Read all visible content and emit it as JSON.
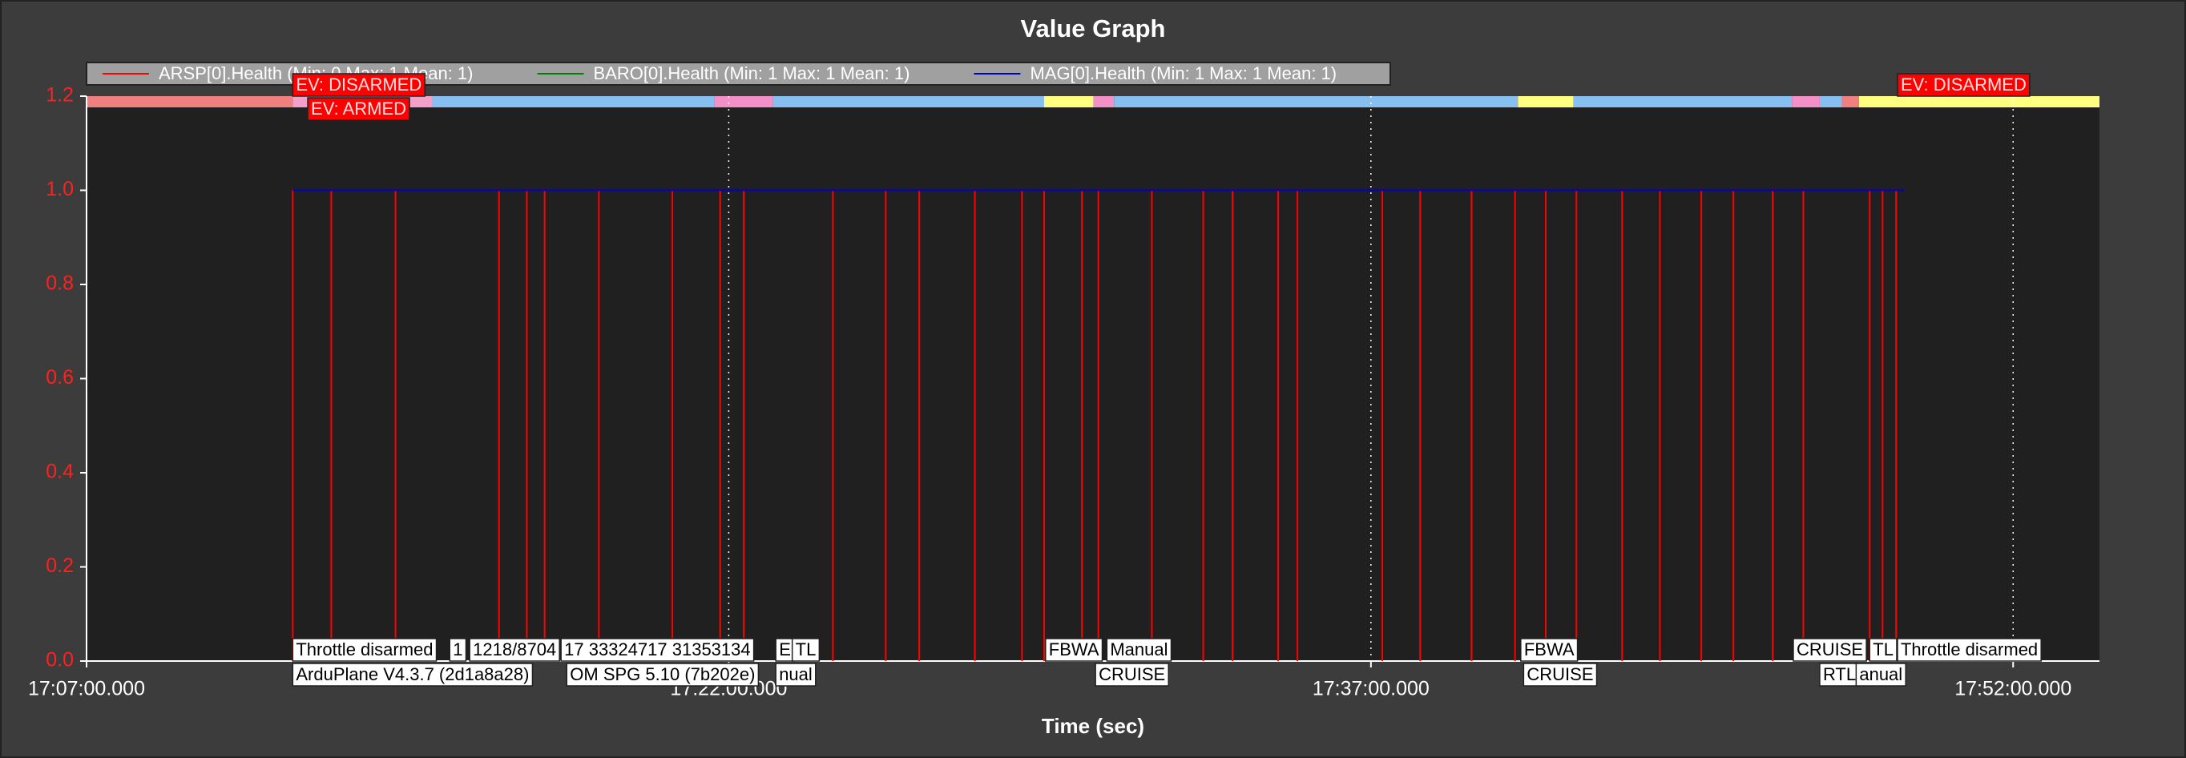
{
  "chart_data": {
    "type": "line",
    "title": "Value Graph",
    "xlabel": "Time (sec)",
    "xlim": [
      61620,
      64441
    ],
    "xticks": [
      {
        "value": 61620,
        "label": "17:07:00.000"
      },
      {
        "value": 62520,
        "label": "17:22:00.000"
      },
      {
        "value": 63420,
        "label": "17:37:00.000"
      },
      {
        "value": 64320,
        "label": "17:52:00.000"
      }
    ],
    "ylim": [
      0,
      1.2
    ],
    "yticks": [
      {
        "value": 0,
        "label": "0.0"
      },
      0.2,
      0.4,
      0.6,
      0.8,
      {
        "value": 1,
        "label": "1.0"
      },
      1.2
    ],
    "grid": true,
    "series": [
      {
        "name": "ARSP[0].Health  (Min: 0 Max: 1 Mean: 1)",
        "color": "#ff0000",
        "x": [
          61909,
          61909,
          61909,
          61963,
          61963,
          61963,
          62053,
          62053,
          62053,
          62198,
          62198,
          62198,
          62237,
          62237,
          62237,
          62262,
          62262,
          62262,
          62338,
          62338,
          62338,
          62441,
          62441,
          62441,
          62508,
          62508,
          62508,
          62541,
          62541,
          62541,
          62666,
          62666,
          62666,
          62740,
          62740,
          62740,
          62787,
          62787,
          62787,
          62865,
          62865,
          62865,
          62931,
          62931,
          62931,
          62962,
          62962,
          62962,
          63015,
          63015,
          63015,
          63038,
          63038,
          63038,
          63113,
          63113,
          63113,
          63185,
          63185,
          63185,
          63226,
          63226,
          63226,
          63290,
          63290,
          63290,
          63317,
          63317,
          63317,
          63436,
          63436,
          63436,
          63489,
          63489,
          63489,
          63561,
          63561,
          63561,
          63622,
          63622,
          63622,
          63665,
          63665,
          63665,
          63708,
          63708,
          63708,
          63772,
          63772,
          63772,
          63825,
          63825,
          63825,
          63883,
          63883,
          63883,
          63928,
          63928,
          63928,
          63983,
          63983,
          63983,
          64026,
          64026,
          64026,
          64119,
          64119,
          64119,
          64137,
          64137,
          64137,
          64156,
          64156,
          64156,
          64168
        ],
        "values": [
          1,
          0,
          1,
          1,
          0,
          1,
          1,
          0,
          1,
          1,
          0,
          1,
          1,
          0,
          1,
          1,
          0,
          1,
          1,
          0,
          1,
          1,
          0,
          1,
          1,
          0,
          1,
          1,
          0,
          1,
          1,
          0,
          1,
          1,
          0,
          1,
          1,
          0,
          1,
          1,
          0,
          1,
          1,
          0,
          1,
          1,
          0,
          1,
          1,
          0,
          1,
          1,
          0,
          1,
          1,
          0,
          1,
          1,
          0,
          1,
          1,
          0,
          1,
          1,
          0,
          1,
          1,
          0,
          1,
          1,
          0,
          1,
          1,
          0,
          1,
          1,
          0,
          1,
          1,
          0,
          1,
          1,
          0,
          1,
          1,
          0,
          1,
          1,
          0,
          1,
          1,
          0,
          1,
          1,
          0,
          1,
          1,
          0,
          1,
          1,
          0,
          1,
          1,
          0,
          1,
          1,
          0,
          1,
          1,
          0,
          1,
          1,
          0,
          1,
          1
        ]
      },
      {
        "name": "BARO[0].Health  (Min: 1 Max: 1 Mean: 1)",
        "color": "#008000",
        "x": [
          61909,
          64168
        ],
        "values": [
          1,
          1
        ]
      },
      {
        "name": "MAG[0].Health  (Min: 1 Max: 1 Mean: 1)",
        "color": "#0000cd",
        "x": [
          61909,
          64168
        ],
        "values": [
          1,
          1
        ]
      }
    ],
    "mode_bands": [
      {
        "start": 61620,
        "end": 61909,
        "color": "#f08080"
      },
      {
        "start": 61909,
        "end": 62104,
        "color": "#f4a0c8"
      },
      {
        "start": 62104,
        "end": 62500,
        "color": "#87c0f0"
      },
      {
        "start": 62500,
        "end": 62582,
        "color": "#f490c8"
      },
      {
        "start": 62582,
        "end": 62962,
        "color": "#87c0f0"
      },
      {
        "start": 62962,
        "end": 63031,
        "color": "#ffff80"
      },
      {
        "start": 63031,
        "end": 63060,
        "color": "#f490c8"
      },
      {
        "start": 63060,
        "end": 63626,
        "color": "#87c0f0"
      },
      {
        "start": 63626,
        "end": 63704,
        "color": "#ffff80"
      },
      {
        "start": 63704,
        "end": 64010,
        "color": "#87c0f0"
      },
      {
        "start": 64010,
        "end": 64049,
        "color": "#f490c8"
      },
      {
        "start": 64049,
        "end": 64080,
        "color": "#87c0f0"
      },
      {
        "start": 64080,
        "end": 64104,
        "color": "#f08080"
      },
      {
        "start": 64104,
        "end": 64441,
        "color": "#ffff80"
      }
    ],
    "event_labels": [
      {
        "text": "EV: DISARMED",
        "x": 61909
      },
      {
        "text": "EV: ARMED",
        "x": 61930
      },
      {
        "text": "EV: DISARMED",
        "x": 64158
      }
    ],
    "mode_labels": [
      {
        "text": "Throttle disarmed",
        "x": 61909
      },
      {
        "text": "ArduPlane V4.3.7 (2d1a8a28)",
        "x": 61909
      },
      {
        "text": "1",
        "x": 62129
      },
      {
        "text": "1218/8704",
        "x": 62157
      },
      {
        "text": "17 33324717 31353134",
        "x": 62285
      },
      {
        "text": "OM SPG 5.10 (7b202e)",
        "x": 62293
      },
      {
        "text": "E",
        "x": 62586
      },
      {
        "text": "nual",
        "x": 62586
      },
      {
        "text": "TL",
        "x": 62609
      },
      {
        "text": "FBWA",
        "x": 62964
      },
      {
        "text": "CRUISE",
        "x": 63034
      },
      {
        "text": "Manual",
        "x": 63050
      },
      {
        "text": "FBWA",
        "x": 63630
      },
      {
        "text": "CRUISE",
        "x": 63634
      },
      {
        "text": "CRUISE",
        "x": 64012
      },
      {
        "text": "RTL",
        "x": 64049
      },
      {
        "text": "anual",
        "x": 64100
      },
      {
        "text": "TL",
        "x": 64119
      },
      {
        "text": "Throttle disarmed",
        "x": 64158
      }
    ]
  }
}
